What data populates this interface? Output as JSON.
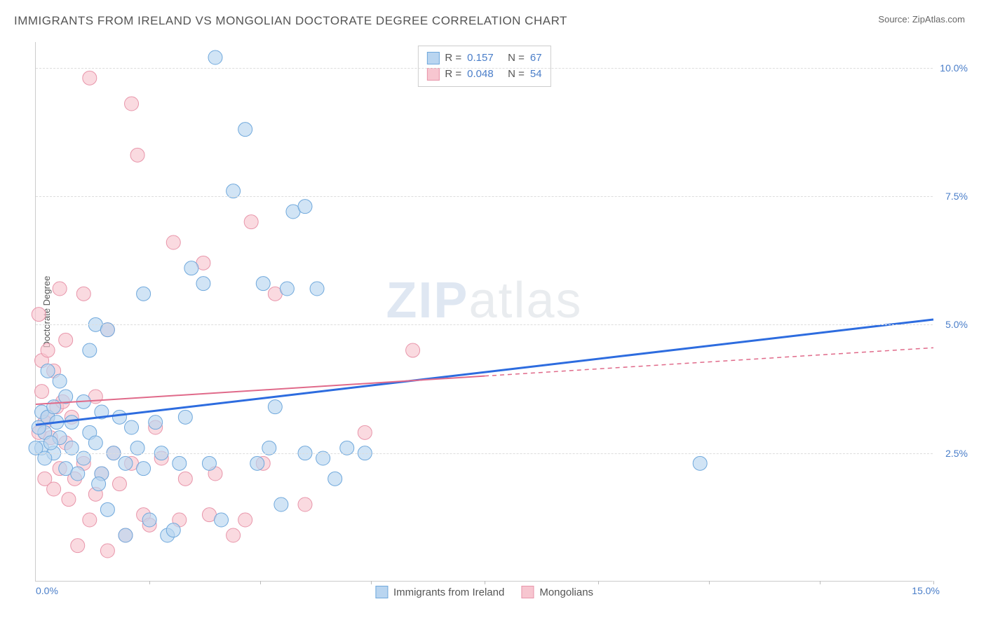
{
  "title": "IMMIGRANTS FROM IRELAND VS MONGOLIAN DOCTORATE DEGREE CORRELATION CHART",
  "source_label": "Source:",
  "source_name": "ZipAtlas.com",
  "y_axis_label": "Doctorate Degree",
  "watermark_a": "ZIP",
  "watermark_b": "atlas",
  "chart": {
    "type": "scatter",
    "xlim": [
      0,
      15
    ],
    "ylim": [
      0,
      10.5
    ],
    "y_ticks": [
      2.5,
      5.0,
      7.5,
      10.0
    ],
    "y_tick_labels": [
      "2.5%",
      "5.0%",
      "7.5%",
      "10.0%"
    ],
    "x_tick_left": "0.0%",
    "x_tick_right": "15.0%",
    "x_minor_ticks": [
      1.9,
      3.75,
      5.6,
      7.5,
      9.4,
      11.25,
      13.1,
      15
    ],
    "background_color": "#ffffff",
    "grid_color": "#dddddd",
    "series": [
      {
        "id": "ireland",
        "label": "Immigrants from Ireland",
        "color_fill": "#b9d5f0",
        "color_stroke": "#6fa8dc",
        "marker_radius": 10,
        "marker_opacity": 0.65,
        "R": "0.157",
        "N": "67",
        "trend": {
          "x1": 0,
          "y1": 3.05,
          "x2": 15,
          "y2": 5.1,
          "solid_until_x": 15,
          "color": "#2d6cdf",
          "width": 3
        },
        "points": [
          [
            0.1,
            3.3
          ],
          [
            0.1,
            2.6
          ],
          [
            0.15,
            2.9
          ],
          [
            0.2,
            4.1
          ],
          [
            0.2,
            3.2
          ],
          [
            0.3,
            2.5
          ],
          [
            0.3,
            3.4
          ],
          [
            0.4,
            2.8
          ],
          [
            0.5,
            3.6
          ],
          [
            0.5,
            2.2
          ],
          [
            0.6,
            3.1
          ],
          [
            0.7,
            2.1
          ],
          [
            0.8,
            3.5
          ],
          [
            0.8,
            2.4
          ],
          [
            0.9,
            2.9
          ],
          [
            1.0,
            5.0
          ],
          [
            1.0,
            2.7
          ],
          [
            1.1,
            3.3
          ],
          [
            1.2,
            1.4
          ],
          [
            1.2,
            4.9
          ],
          [
            1.3,
            2.5
          ],
          [
            1.4,
            3.2
          ],
          [
            1.5,
            2.3
          ],
          [
            1.5,
            0.9
          ],
          [
            1.6,
            3.0
          ],
          [
            1.7,
            2.6
          ],
          [
            1.8,
            5.6
          ],
          [
            1.8,
            2.2
          ],
          [
            1.9,
            1.2
          ],
          [
            2.0,
            3.1
          ],
          [
            2.1,
            2.5
          ],
          [
            2.2,
            0.9
          ],
          [
            2.3,
            1.0
          ],
          [
            2.4,
            2.3
          ],
          [
            2.5,
            3.2
          ],
          [
            2.6,
            6.1
          ],
          [
            2.8,
            5.8
          ],
          [
            2.9,
            2.3
          ],
          [
            3.0,
            10.2
          ],
          [
            3.1,
            1.2
          ],
          [
            3.3,
            7.6
          ],
          [
            3.5,
            8.8
          ],
          [
            3.7,
            2.3
          ],
          [
            3.8,
            5.8
          ],
          [
            3.9,
            2.6
          ],
          [
            4.0,
            3.4
          ],
          [
            4.1,
            1.5
          ],
          [
            4.2,
            5.7
          ],
          [
            4.3,
            7.2
          ],
          [
            4.5,
            7.3
          ],
          [
            4.5,
            2.5
          ],
          [
            4.7,
            5.7
          ],
          [
            4.8,
            2.4
          ],
          [
            5.0,
            2.0
          ],
          [
            5.2,
            2.6
          ],
          [
            5.5,
            2.5
          ],
          [
            11.1,
            2.3
          ],
          [
            0.0,
            2.6
          ],
          [
            0.05,
            3.0
          ],
          [
            0.4,
            3.9
          ],
          [
            0.9,
            4.5
          ],
          [
            1.1,
            2.1
          ],
          [
            0.6,
            2.6
          ],
          [
            0.15,
            2.4
          ],
          [
            0.35,
            3.1
          ],
          [
            0.25,
            2.7
          ],
          [
            1.05,
            1.9
          ]
        ]
      },
      {
        "id": "mongolians",
        "label": "Mongolians",
        "color_fill": "#f7c6d0",
        "color_stroke": "#e895aa",
        "marker_radius": 10,
        "marker_opacity": 0.65,
        "R": "0.048",
        "N": "54",
        "trend": {
          "x1": 0,
          "y1": 3.45,
          "x2": 15,
          "y2": 4.55,
          "solid_until_x": 7.5,
          "color": "#e06a8a",
          "width": 2
        },
        "points": [
          [
            0.05,
            5.2
          ],
          [
            0.1,
            4.3
          ],
          [
            0.1,
            3.7
          ],
          [
            0.15,
            2.0
          ],
          [
            0.2,
            4.5
          ],
          [
            0.2,
            3.2
          ],
          [
            0.25,
            2.8
          ],
          [
            0.3,
            4.1
          ],
          [
            0.3,
            1.8
          ],
          [
            0.35,
            3.4
          ],
          [
            0.4,
            5.7
          ],
          [
            0.4,
            2.2
          ],
          [
            0.5,
            2.7
          ],
          [
            0.5,
            4.7
          ],
          [
            0.55,
            1.6
          ],
          [
            0.6,
            3.2
          ],
          [
            0.7,
            0.7
          ],
          [
            0.8,
            2.3
          ],
          [
            0.8,
            5.6
          ],
          [
            0.9,
            9.8
          ],
          [
            0.9,
            1.2
          ],
          [
            1.0,
            3.6
          ],
          [
            1.0,
            1.7
          ],
          [
            1.1,
            2.1
          ],
          [
            1.2,
            0.6
          ],
          [
            1.2,
            4.9
          ],
          [
            1.3,
            2.5
          ],
          [
            1.4,
            1.9
          ],
          [
            1.5,
            0.9
          ],
          [
            1.6,
            9.3
          ],
          [
            1.6,
            2.3
          ],
          [
            1.7,
            8.3
          ],
          [
            1.8,
            1.3
          ],
          [
            1.9,
            1.1
          ],
          [
            2.0,
            3.0
          ],
          [
            2.1,
            2.4
          ],
          [
            2.3,
            6.6
          ],
          [
            2.4,
            1.2
          ],
          [
            2.5,
            2.0
          ],
          [
            2.8,
            6.2
          ],
          [
            2.9,
            1.3
          ],
          [
            3.0,
            2.1
          ],
          [
            3.3,
            0.9
          ],
          [
            3.5,
            1.2
          ],
          [
            3.6,
            7.0
          ],
          [
            3.8,
            2.3
          ],
          [
            4.0,
            5.6
          ],
          [
            4.5,
            1.5
          ],
          [
            5.5,
            2.9
          ],
          [
            6.3,
            4.5
          ],
          [
            0.15,
            3.1
          ],
          [
            0.45,
            3.5
          ],
          [
            0.05,
            2.9
          ],
          [
            0.65,
            2.0
          ]
        ]
      }
    ]
  },
  "legend": {
    "R_label": "R =",
    "N_label": "N ="
  }
}
